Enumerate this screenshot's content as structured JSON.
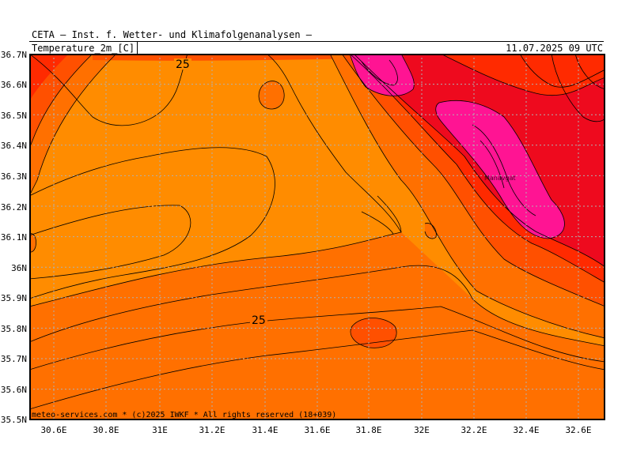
{
  "header": {
    "institute": "CETA — Inst. f. Wetter- und Klimafolgenanalysen —",
    "parameter": "Temperature_2m_[C]",
    "valid_time": "11.07.2025 09 UTC"
  },
  "footer": {
    "credit": "meteo-services.com * (c)2025 IWKF * All rights reserved (18+039)"
  },
  "map": {
    "axis_y_labels": [
      "36.7N",
      "36.6N",
      "36.5N",
      "36.4N",
      "36.3N",
      "36.2N",
      "36.1N",
      "36N",
      "35.9N",
      "35.8N",
      "35.7N",
      "35.6N",
      "35.5N"
    ],
    "axis_x_labels": [
      "30.6E",
      "30.8E",
      "31E",
      "31.2E",
      "31.4E",
      "31.6E",
      "31.8E",
      "32E",
      "32.2E",
      "32.4E",
      "32.6E"
    ],
    "contour_labels": [
      "25",
      "25"
    ],
    "place_label": "Manavgat",
    "colors": {
      "t23_25": "#ff8c00",
      "t25_27": "#ff7000",
      "t27_29": "#ff5000",
      "t29_31": "#ff2a00",
      "t31_33": "#ee0a1e",
      "t33_35": "#ff0066",
      "t35_plus": "#ff1493"
    }
  }
}
